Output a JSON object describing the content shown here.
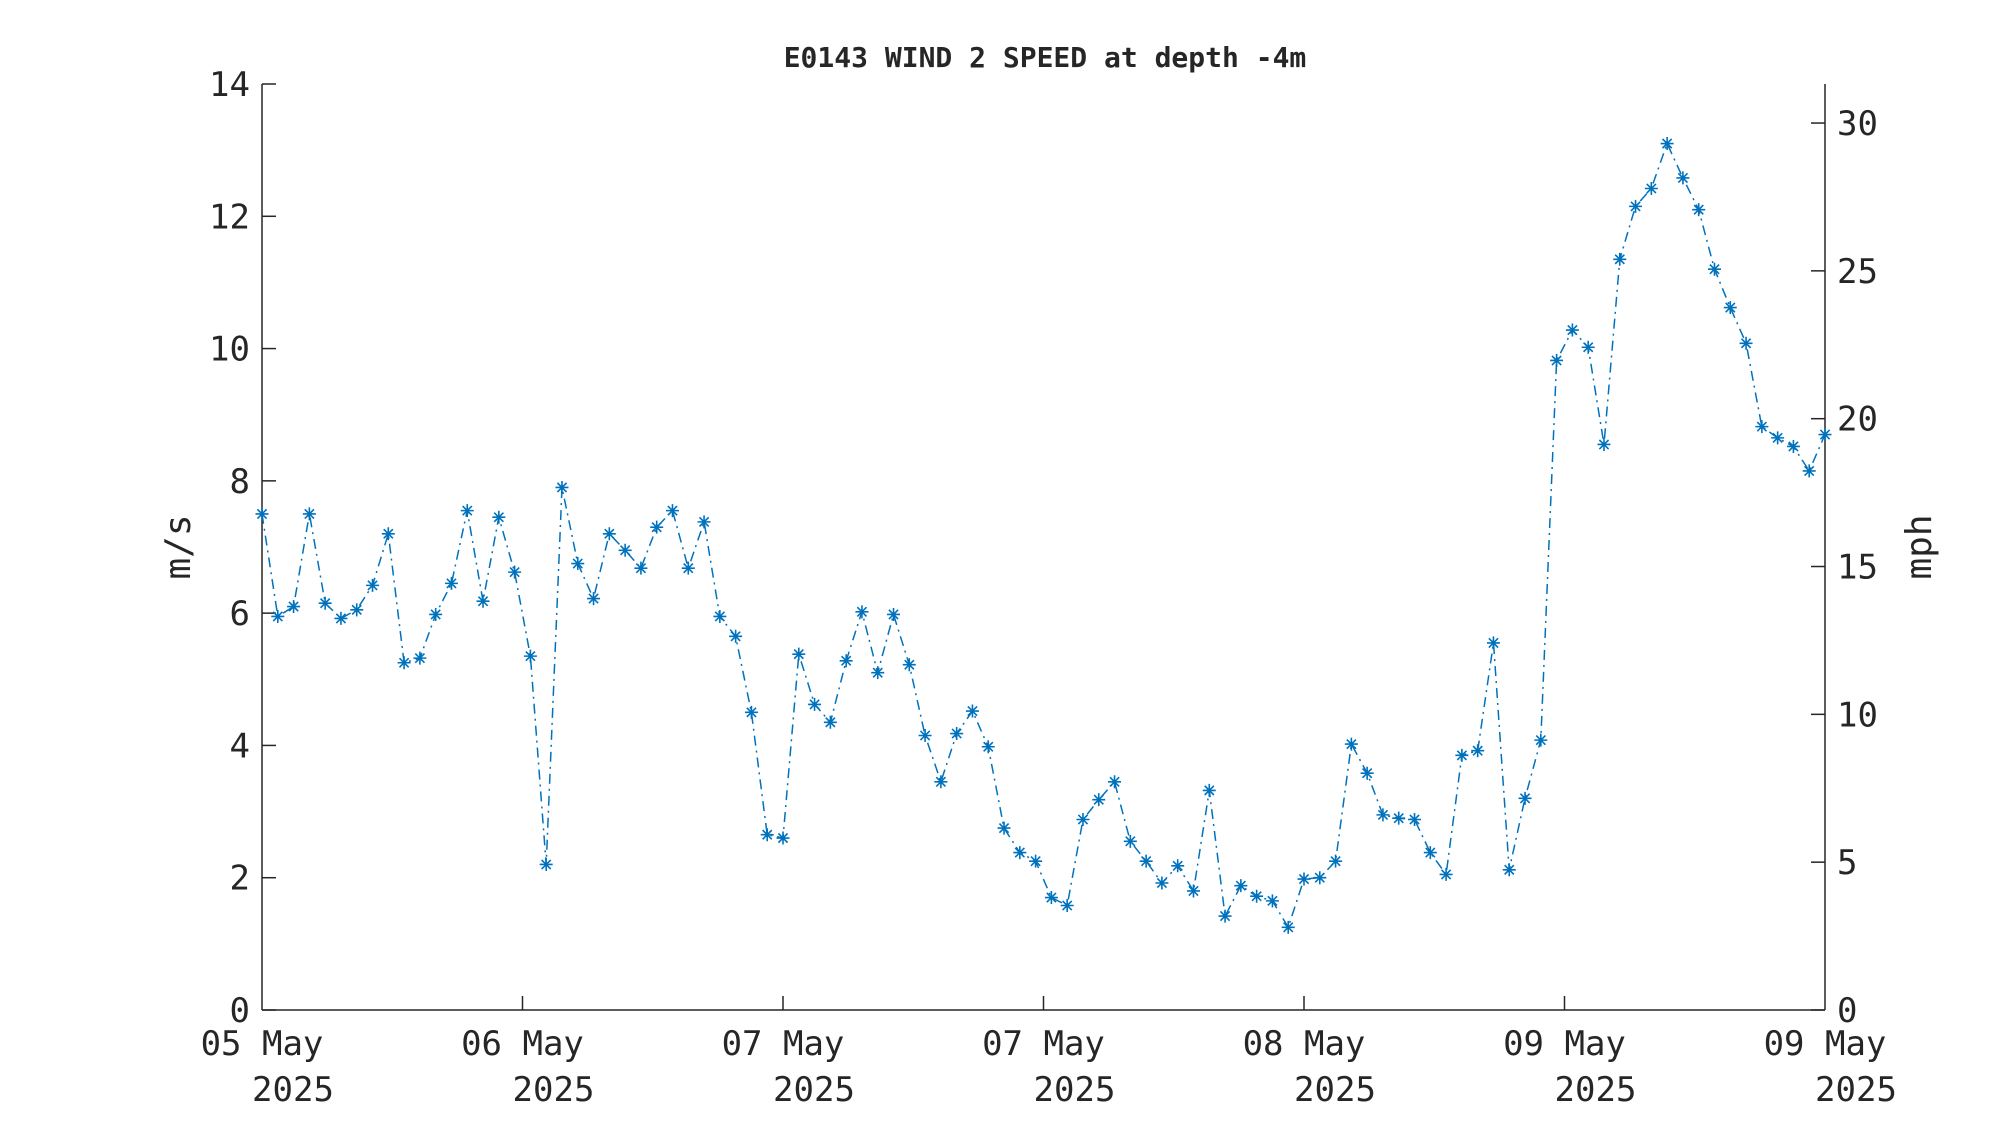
{
  "chart_data": {
    "type": "line",
    "title": "E0143 WIND 2 SPEED at depth -4m",
    "ylabel": "m/s",
    "ylabel_right": "mph",
    "ylim": [
      0,
      14
    ],
    "ylim_right": [
      0,
      31.32
    ],
    "yticks": [
      "0",
      "2",
      "4",
      "6",
      "8",
      "10",
      "12",
      "14"
    ],
    "yticks_right": [
      "0",
      "5",
      "10",
      "15",
      "20",
      "25",
      "30"
    ],
    "xlim": [
      0,
      120
    ],
    "xticks": [
      {
        "line1": "05 May",
        "line2": "2025"
      },
      {
        "line1": "06 May",
        "line2": "2025"
      },
      {
        "line1": "07 May",
        "line2": "2025"
      },
      {
        "line1": "07 May",
        "line2": "2025"
      },
      {
        "line1": "08 May",
        "line2": "2025"
      },
      {
        "line1": "09 May",
        "line2": "2025"
      },
      {
        "line1": "09 May",
        "line2": "2025"
      }
    ],
    "line_color": "#0072BD",
    "line_style": "dash-dot",
    "marker": "asterisk",
    "grid": false,
    "series": [
      {
        "values": [
          7.5,
          5.95,
          6.1,
          7.5,
          6.15,
          5.92,
          6.05,
          6.42,
          7.2,
          5.25,
          5.32,
          5.98,
          6.45,
          7.55,
          6.18,
          7.45,
          6.62,
          5.35,
          2.2,
          7.9,
          6.75,
          6.22,
          7.2,
          6.95,
          6.68,
          7.3,
          7.55,
          6.68,
          7.38,
          5.95,
          5.65,
          4.5,
          2.65,
          2.6,
          5.38,
          4.62,
          4.35,
          5.28,
          6.02,
          5.1,
          5.98,
          5.22,
          4.15,
          3.45,
          4.18,
          4.52,
          3.98,
          2.75,
          2.38,
          2.25,
          1.7,
          1.58,
          2.88,
          3.18,
          3.45,
          2.55,
          2.25,
          1.92,
          2.18,
          1.8,
          3.32,
          1.42,
          1.88,
          1.72,
          1.65,
          1.25,
          1.98,
          2.0,
          2.25,
          4.02,
          3.58,
          2.95,
          2.9,
          2.88,
          2.38,
          2.05,
          3.85,
          3.92,
          5.55,
          2.12,
          3.2,
          4.08,
          9.82,
          10.28,
          10.02,
          8.55,
          11.35,
          12.15,
          12.42,
          13.1,
          12.58,
          12.1,
          11.2,
          10.62,
          10.08,
          8.82,
          8.65,
          8.52,
          8.15,
          8.7
        ]
      }
    ]
  }
}
